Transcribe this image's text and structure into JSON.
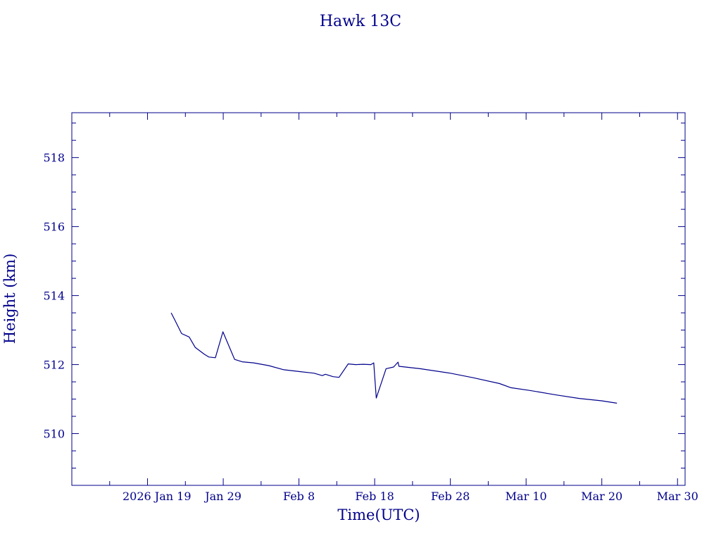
{
  "chart_data": {
    "type": "line",
    "title": "Hawk 13C",
    "xlabel": "Time(UTC)",
    "ylabel": "Height (km)",
    "x_kind": "date",
    "xlim": [
      "2026-01-09",
      "2026-03-31"
    ],
    "ylim": [
      508.5,
      519.3
    ],
    "x_ticks": [
      {
        "date": "2026-01-19",
        "label": "2026 Jan 19"
      },
      {
        "date": "2026-01-29",
        "label": "Jan 29"
      },
      {
        "date": "2026-02-08",
        "label": "Feb  8"
      },
      {
        "date": "2026-02-18",
        "label": "Feb 18"
      },
      {
        "date": "2026-02-28",
        "label": "Feb 28"
      },
      {
        "date": "2026-03-10",
        "label": "Mar 10"
      },
      {
        "date": "2026-03-20",
        "label": "Mar 20"
      },
      {
        "date": "2026-03-30",
        "label": "Mar 30"
      }
    ],
    "y_ticks": [
      510,
      512,
      514,
      516,
      518
    ],
    "grid": false,
    "series": [
      {
        "color": "#00008b",
        "points": [
          {
            "x": "2026-01-22T03:00",
            "y": 513.5
          },
          {
            "x": "2026-01-22T14:00",
            "y": 513.3
          },
          {
            "x": "2026-01-23T12:00",
            "y": 512.9
          },
          {
            "x": "2026-01-24T12:00",
            "y": 512.8
          },
          {
            "x": "2026-01-25T07:00",
            "y": 512.5
          },
          {
            "x": "2026-01-26T12:00",
            "y": 512.3
          },
          {
            "x": "2026-01-27T02:00",
            "y": 512.22
          },
          {
            "x": "2026-01-27T23:00",
            "y": 512.2
          },
          {
            "x": "2026-01-28T23:00",
            "y": 512.95
          },
          {
            "x": "2026-01-30T12:00",
            "y": 512.15
          },
          {
            "x": "2026-01-31T12:00",
            "y": 512.08
          },
          {
            "x": "2026-02-02T00:00",
            "y": 512.05
          },
          {
            "x": "2026-02-04T00:00",
            "y": 511.97
          },
          {
            "x": "2026-02-06T00:00",
            "y": 511.85
          },
          {
            "x": "2026-02-08T00:00",
            "y": 511.8
          },
          {
            "x": "2026-02-10T00:00",
            "y": 511.75
          },
          {
            "x": "2026-02-11T02:00",
            "y": 511.68
          },
          {
            "x": "2026-02-11T12:00",
            "y": 511.72
          },
          {
            "x": "2026-02-12T12:00",
            "y": 511.65
          },
          {
            "x": "2026-02-13T07:00",
            "y": 511.63
          },
          {
            "x": "2026-02-14T12:00",
            "y": 512.02
          },
          {
            "x": "2026-02-15T12:00",
            "y": 512.0
          },
          {
            "x": "2026-02-16T12:00",
            "y": 512.01
          },
          {
            "x": "2026-02-17T12:00",
            "y": 512.0
          },
          {
            "x": "2026-02-17T21:00",
            "y": 512.05
          },
          {
            "x": "2026-02-18T05:00",
            "y": 511.03
          },
          {
            "x": "2026-02-19T12:00",
            "y": 511.88
          },
          {
            "x": "2026-02-20T12:00",
            "y": 511.93
          },
          {
            "x": "2026-02-21T02:00",
            "y": 512.07
          },
          {
            "x": "2026-02-21T05:00",
            "y": 511.95
          },
          {
            "x": "2026-02-24T00:00",
            "y": 511.88
          },
          {
            "x": "2026-02-28T00:00",
            "y": 511.75
          },
          {
            "x": "2026-03-03T00:00",
            "y": 511.62
          },
          {
            "x": "2026-03-06T12:00",
            "y": 511.45
          },
          {
            "x": "2026-03-08T00:00",
            "y": 511.33
          },
          {
            "x": "2026-03-10T12:00",
            "y": 511.25
          },
          {
            "x": "2026-03-14T00:00",
            "y": 511.12
          },
          {
            "x": "2026-03-17T00:00",
            "y": 511.02
          },
          {
            "x": "2026-03-20T00:00",
            "y": 510.95
          },
          {
            "x": "2026-03-22T00:00",
            "y": 510.88
          }
        ]
      }
    ]
  }
}
